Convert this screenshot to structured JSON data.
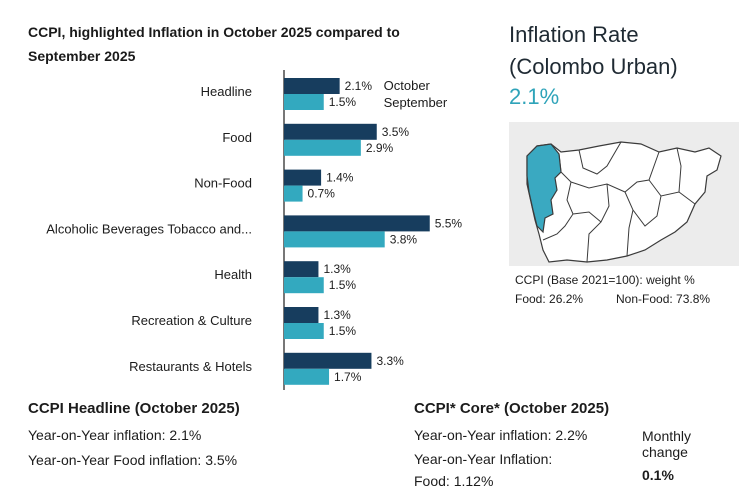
{
  "chart_data": {
    "type": "bar",
    "orientation": "horizontal",
    "title": "CCPI, highlighted Inflation in October 2025 compared to September 2025",
    "categories": [
      "Headline",
      "Food",
      "Non-Food",
      "Alcoholic Beverages Tobacco and...",
      "Health",
      "Recreation & Culture",
      "Restaurants & Hotels"
    ],
    "series": [
      {
        "name": "October",
        "color": "#173d5e",
        "values": [
          2.1,
          3.5,
          1.4,
          5.5,
          1.3,
          1.3,
          3.3
        ],
        "labels": [
          "2.1%",
          "3.5%",
          "1.4%",
          "5.5%",
          "1.3%",
          "1.3%",
          "3.3%"
        ]
      },
      {
        "name": "September",
        "color": "#33a9bf",
        "values": [
          1.5,
          2.9,
          0.7,
          3.8,
          1.5,
          1.5,
          1.7
        ],
        "labels": [
          "1.5%",
          "2.9%",
          "0.7%",
          "3.8%",
          "1.5%",
          "1.5%",
          "1.7%"
        ]
      }
    ],
    "xlim": [
      0,
      6.5
    ],
    "xlabel": "",
    "ylabel": "",
    "grid": false,
    "legend_position": "right of first category"
  },
  "rate_panel": {
    "title": "Inflation Rate (Colombo Urban)",
    "value": "2.1%",
    "map_colors": {
      "background": "#ececec",
      "district_fill": "#ffffff",
      "highlight_fill": "#3aa9c1",
      "border": "#3b3b3b"
    },
    "weights_title": "CCPI (Base 2021=100): weight %",
    "food_weight": "Food: 26.2%",
    "nonfood_weight": "Non-Food: 73.8%"
  },
  "headline": {
    "title": "CCPI Headline (October 2025)",
    "yoy": "Year-on-Year inflation: 2.1%",
    "yoy_food": "Year-on-Year Food inflation: 3.5%"
  },
  "core": {
    "title": "CCPI* Core* (October 2025)",
    "yoy": "Year-on-Year inflation: 2.2%",
    "yoy_food_line1": "Year-on-Year Inflation:",
    "yoy_food_line2": "Food: 1.12%",
    "monthly_label": "Monthly change",
    "monthly_value": "0.1%"
  }
}
